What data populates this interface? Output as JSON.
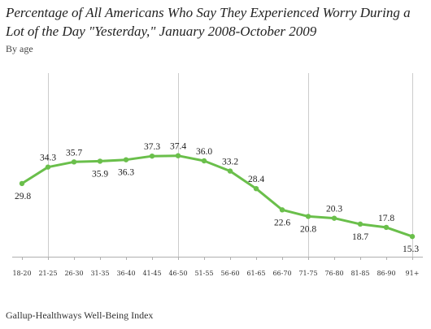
{
  "chart_data": {
    "type": "line",
    "title": "Percentage of All Americans Who Say They Experienced Worry During a Lot of the Day \"Yesterday,\" January 2008-October 2009",
    "subtitle": "By age",
    "source": "Gallup-Healthways Well-Being Index",
    "categories": [
      "18-20",
      "21-25",
      "26-30",
      "31-35",
      "36-40",
      "41-45",
      "46-50",
      "51-55",
      "56-60",
      "61-65",
      "66-70",
      "71-75",
      "76-80",
      "81-85",
      "86-90",
      "91+"
    ],
    "values": [
      29.8,
      34.3,
      35.7,
      35.9,
      36.3,
      37.3,
      37.4,
      36.0,
      33.2,
      28.4,
      22.6,
      20.8,
      20.3,
      18.7,
      17.8,
      15.3
    ],
    "data_labels": [
      "29.8",
      "34.3",
      "35.7",
      "35.9",
      "36.3",
      "37.3",
      "37.4",
      "36.0",
      "33.2",
      "28.4",
      "22.6",
      "20.8",
      "20.3",
      "18.7",
      "17.8",
      "15.3"
    ],
    "ylim": [
      10,
      60
    ],
    "grid": "vertical",
    "line_color": "#6abf4b",
    "grid_color": "#cccccc"
  }
}
